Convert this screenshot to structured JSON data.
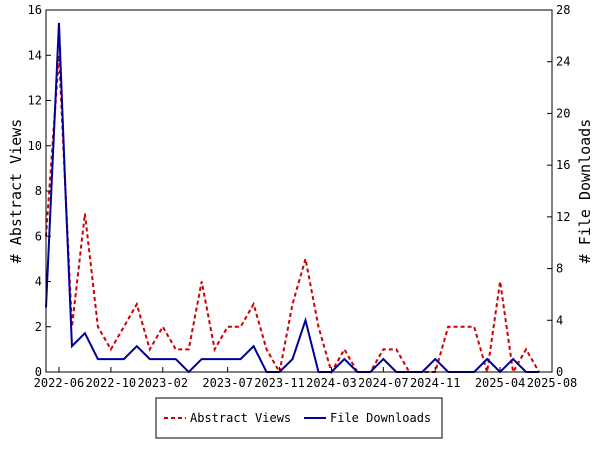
{
  "chart_data": {
    "type": "line",
    "title": "",
    "xlabel": "",
    "ylabel_left": "# Abstract Views",
    "ylabel_right": "# File Downloads",
    "x_tick_labels": [
      "2022-06",
      "2022-10",
      "2023-02",
      "2023-07",
      "2023-11",
      "2024-03",
      "2024-07",
      "2024-11",
      "2025-04",
      "2025-08"
    ],
    "x_tick_index": [
      1,
      5,
      9,
      14,
      18,
      22,
      26,
      30,
      35,
      39
    ],
    "x_categories": [
      "2022-05",
      "2022-06",
      "2022-07",
      "2022-08",
      "2022-09",
      "2022-10",
      "2022-11",
      "2022-12",
      "2023-01",
      "2023-02",
      "2023-03",
      "2023-04",
      "2023-05",
      "2023-06",
      "2023-07",
      "2023-08",
      "2023-09",
      "2023-10",
      "2023-11",
      "2023-12",
      "2024-01",
      "2024-02",
      "2024-03",
      "2024-04",
      "2024-05",
      "2024-06",
      "2024-07",
      "2024-08",
      "2024-09",
      "2024-10",
      "2024-11",
      "2024-12",
      "2025-01",
      "2025-02",
      "2025-03",
      "2025-04",
      "2025-05",
      "2025-06",
      "2025-07",
      "2025-08"
    ],
    "y_left": {
      "min": 0,
      "max": 16,
      "ticks": [
        0,
        2,
        4,
        6,
        8,
        10,
        12,
        14,
        16
      ]
    },
    "y_right": {
      "min": 0,
      "max": 28,
      "ticks": [
        0,
        4,
        8,
        12,
        16,
        20,
        24,
        28
      ]
    },
    "grid": false,
    "legend_position": "bottom-center",
    "series": [
      {
        "name": "Abstract Views",
        "axis": "left",
        "color": "#cc0000",
        "dash": true,
        "points": [
          [
            0,
            6
          ],
          [
            1,
            14
          ],
          [
            1.5,
            8
          ],
          [
            2,
            2
          ],
          [
            3,
            7
          ],
          [
            4,
            2
          ],
          [
            5,
            1
          ],
          [
            6,
            2
          ],
          [
            7,
            3
          ],
          [
            8,
            1
          ],
          [
            9,
            2
          ],
          [
            10,
            1
          ],
          [
            11,
            1
          ],
          [
            12,
            4
          ],
          [
            13,
            1
          ],
          [
            14,
            2
          ],
          [
            15,
            2
          ],
          [
            16,
            3
          ],
          [
            17,
            1
          ],
          [
            18,
            0
          ],
          [
            19,
            3
          ],
          [
            20,
            5
          ],
          [
            21,
            2
          ],
          [
            22,
            0
          ],
          [
            23,
            1
          ],
          [
            24,
            0
          ],
          [
            25,
            0
          ],
          [
            26,
            1
          ],
          [
            27,
            1
          ],
          [
            28,
            0
          ],
          [
            29,
            0
          ],
          [
            30,
            0
          ],
          [
            31,
            2
          ],
          [
            32,
            2
          ],
          [
            33,
            2
          ],
          [
            34,
            0
          ],
          [
            35,
            4
          ],
          [
            36,
            0
          ],
          [
            37,
            1
          ],
          [
            38,
            0
          ]
        ]
      },
      {
        "name": "File Downloads",
        "axis": "right",
        "color": "#000099",
        "dash": false,
        "points": [
          [
            0,
            5
          ],
          [
            1,
            27
          ],
          [
            1.5,
            14
          ],
          [
            2,
            2
          ],
          [
            3,
            3
          ],
          [
            4,
            1
          ],
          [
            5,
            1
          ],
          [
            6,
            1
          ],
          [
            7,
            2
          ],
          [
            8,
            1
          ],
          [
            9,
            1
          ],
          [
            10,
            1
          ],
          [
            11,
            0
          ],
          [
            12,
            1
          ],
          [
            13,
            1
          ],
          [
            14,
            1
          ],
          [
            15,
            1
          ],
          [
            16,
            2
          ],
          [
            17,
            0
          ],
          [
            18,
            0
          ],
          [
            19,
            1
          ],
          [
            20,
            4
          ],
          [
            21,
            0
          ],
          [
            22,
            0
          ],
          [
            23,
            1
          ],
          [
            24,
            0
          ],
          [
            25,
            0
          ],
          [
            26,
            1
          ],
          [
            27,
            0
          ],
          [
            28,
            0
          ],
          [
            29,
            0
          ],
          [
            30,
            1
          ],
          [
            31,
            0
          ],
          [
            32,
            0
          ],
          [
            33,
            0
          ],
          [
            34,
            1
          ],
          [
            35,
            0
          ],
          [
            36,
            1
          ],
          [
            37,
            0
          ],
          [
            38,
            0
          ]
        ]
      }
    ]
  }
}
